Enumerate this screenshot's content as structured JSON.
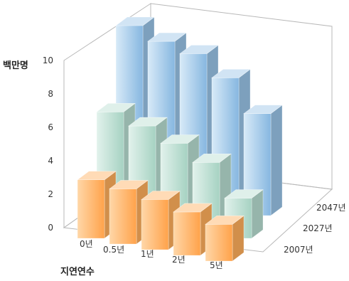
{
  "chart_data": {
    "type": "bar",
    "subtype": "3d-column",
    "ylabel": "백만명",
    "xlabel": "지연연수",
    "categories": [
      "0년",
      "0.5년",
      "1년",
      "2년",
      "5년"
    ],
    "series": [
      {
        "name": "2007년",
        "values": [
          3.5,
          3.3,
          3.0,
          2.6,
          2.2
        ],
        "color": "#ffae5c"
      },
      {
        "name": "2027년",
        "values": [
          6.2,
          5.7,
          5.0,
          4.2,
          2.4
        ],
        "color": "#b7ddd0"
      },
      {
        "name": "2047년",
        "values": [
          10.0,
          9.4,
          9.0,
          7.9,
          6.1
        ],
        "color": "#98c3e6"
      }
    ],
    "ylim": [
      0,
      10
    ],
    "yticks": [
      0,
      2,
      4,
      6,
      8,
      10
    ],
    "grid": false
  }
}
